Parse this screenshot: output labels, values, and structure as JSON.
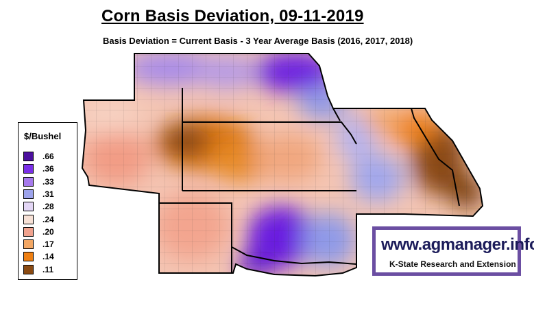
{
  "header": {
    "title": "Corn Basis Deviation, 09-11-2019",
    "subtitle": "Basis Deviation = Current Basis - 3 Year Average Basis (2016, 2017, 2018)"
  },
  "legend": {
    "title": "$/Bushel",
    "items": [
      {
        "label": ".66",
        "color": "#4b0f9e"
      },
      {
        "label": ".36",
        "color": "#7a2ee8"
      },
      {
        "label": ".33",
        "color": "#a679ec"
      },
      {
        "label": ".31",
        "color": "#9da3ec"
      },
      {
        "label": ".28",
        "color": "#e3d6f5"
      },
      {
        "label": ".24",
        "color": "#f7e1d6"
      },
      {
        "label": ".20",
        "color": "#f0a28e"
      },
      {
        "label": ".17",
        "color": "#f3a764"
      },
      {
        "label": ".14",
        "color": "#ee7f12"
      },
      {
        "label": ".11",
        "color": "#8a4a12"
      }
    ]
  },
  "brand": {
    "url": "www.agmanager.info",
    "org": "K-State Research and Extension",
    "frame_color": "#6b4ea2"
  }
}
